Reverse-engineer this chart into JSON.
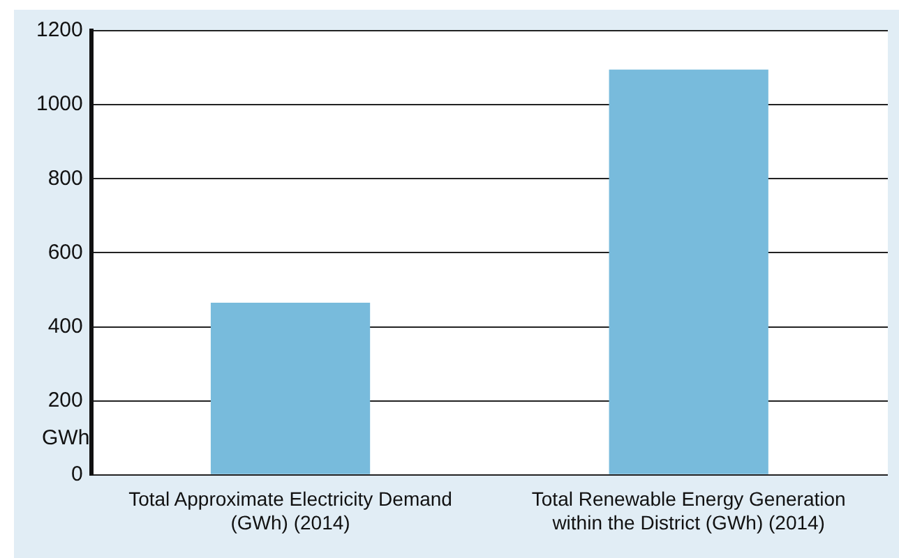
{
  "chart_data": {
    "type": "bar",
    "ylabel": "GWh",
    "categories": [
      "Total Approximate Electricity Demand (GWh) (2014)",
      "Total Renewable Energy Generation within the District (GWh) (2014)"
    ],
    "values": [
      465,
      1095
    ],
    "color": "#78bbdc",
    "ylim": [
      0,
      1200
    ],
    "yticks": [
      0,
      200,
      400,
      600,
      800,
      1000,
      1200
    ],
    "grid": "y"
  }
}
